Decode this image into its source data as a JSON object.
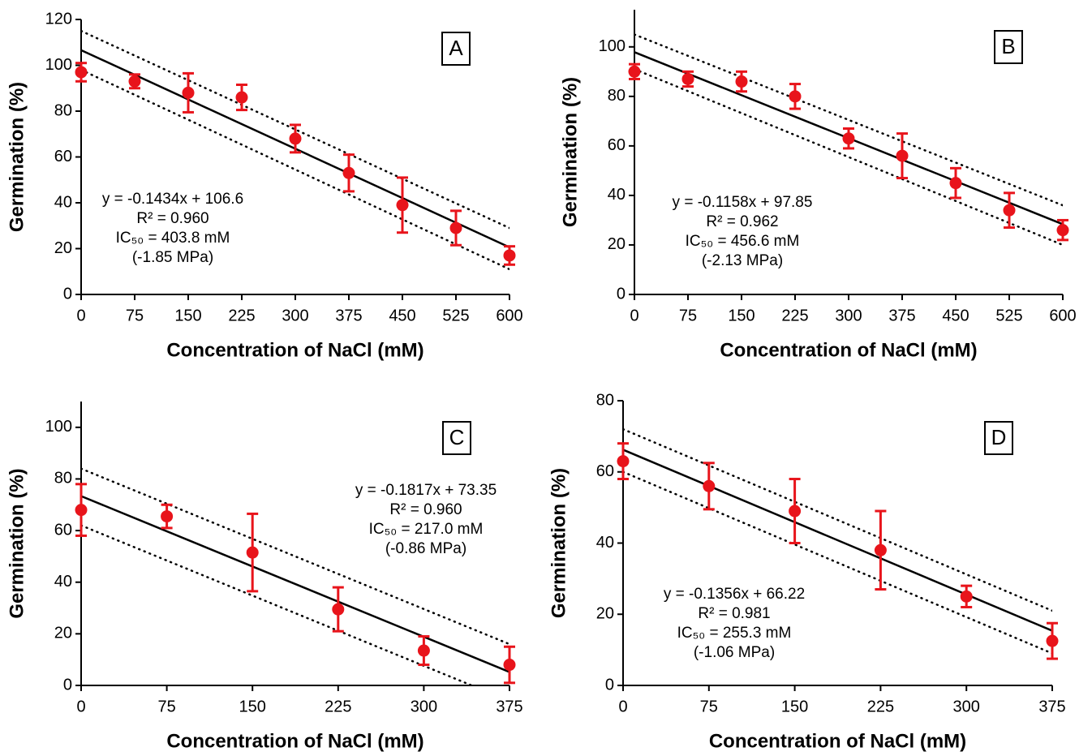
{
  "chart_data": [
    {
      "type": "scatter",
      "label": "A",
      "x": [
        0,
        75,
        150,
        225,
        300,
        375,
        450,
        525,
        600
      ],
      "values": [
        97,
        93,
        88,
        86,
        68,
        53,
        39,
        29,
        17
      ],
      "errors": [
        4,
        3,
        8.5,
        5.5,
        6,
        8,
        12,
        7.5,
        4
      ],
      "color": "#e8141b",
      "fit": {
        "slope": -0.1434,
        "intercept": 106.6
      },
      "band_upper": {
        "x": [
          0,
          600
        ],
        "values": [
          115,
          29
        ]
      },
      "band_lower": {
        "x": [
          0,
          600
        ],
        "values": [
          98,
          11
        ]
      },
      "annotation": [
        "y = -0.1434x + 106.6",
        "R² = 0.960",
        "IC₅₀ = 403.8 mM",
        "(-1.85 MPa)"
      ],
      "x_label": "Concentration of NaCl (mM)",
      "y_label": "Germination (%)",
      "xlim": [
        0,
        600
      ],
      "xticks": [
        0,
        75,
        150,
        225,
        300,
        375,
        450,
        525,
        600
      ],
      "ylim": [
        0,
        120
      ],
      "yticks": [
        0,
        20,
        40,
        60,
        80,
        100,
        120
      ]
    },
    {
      "type": "scatter",
      "label": "B",
      "x": [
        0,
        75,
        150,
        225,
        300,
        375,
        450,
        525,
        600
      ],
      "values": [
        90,
        87,
        86,
        80,
        63,
        56,
        45,
        34,
        26
      ],
      "errors": [
        3,
        3,
        4,
        5,
        4,
        9,
        6,
        7,
        4
      ],
      "color": "#e8141b",
      "fit": {
        "slope": -0.1158,
        "intercept": 97.85
      },
      "band_upper": {
        "x": [
          0,
          600
        ],
        "values": [
          105,
          36
        ]
      },
      "band_lower": {
        "x": [
          0,
          600
        ],
        "values": [
          91,
          20
        ]
      },
      "annotation": [
        "y = -0.1158x + 97.85",
        "R² = 0.962",
        "IC₅₀ = 456.6 mM",
        "(-2.13 MPa)"
      ],
      "x_label": "Concentration of NaCl (mM)",
      "y_label": "Germination (%)",
      "xlim": [
        0,
        600
      ],
      "xticks": [
        0,
        75,
        150,
        225,
        300,
        375,
        450,
        525,
        600
      ],
      "ylim": [
        0,
        115
      ],
      "yticks": [
        0,
        20,
        40,
        60,
        80,
        100
      ]
    },
    {
      "type": "scatter",
      "label": "C",
      "x": [
        0,
        75,
        150,
        225,
        300,
        375
      ],
      "values": [
        68,
        65.5,
        51.5,
        29.5,
        13.5,
        8
      ],
      "errors": [
        10,
        4.5,
        15,
        8.5,
        5.5,
        7
      ],
      "color": "#e8141b",
      "fit": {
        "slope": -0.1817,
        "intercept": 73.35
      },
      "band_upper": {
        "x": [
          0,
          375
        ],
        "values": [
          84,
          16
        ]
      },
      "band_lower": {
        "x": [
          0,
          375
        ],
        "values": [
          62,
          -6
        ]
      },
      "annotation": [
        "y = -0.1817x + 73.35",
        "R² = 0.960",
        "IC₅₀ = 217.0 mM",
        "(-0.86 MPa)"
      ],
      "x_label": "Concentration of NaCl (mM)",
      "y_label": "Germination (%)",
      "xlim": [
        0,
        375
      ],
      "xticks": [
        0,
        75,
        150,
        225,
        300,
        375
      ],
      "ylim": [
        0,
        110
      ],
      "yticks": [
        0,
        20,
        40,
        60,
        80,
        100
      ]
    },
    {
      "type": "scatter",
      "label": "D",
      "x": [
        0,
        75,
        150,
        225,
        300,
        375
      ],
      "values": [
        63,
        56,
        49,
        38,
        25,
        12.5
      ],
      "errors": [
        5,
        6.5,
        9,
        11,
        3,
        5
      ],
      "color": "#e8141b",
      "fit": {
        "slope": -0.1356,
        "intercept": 66.22
      },
      "band_upper": {
        "x": [
          0,
          375
        ],
        "values": [
          72,
          21
        ]
      },
      "band_lower": {
        "x": [
          0,
          375
        ],
        "values": [
          60,
          9
        ]
      },
      "annotation": [
        "y = -0.1356x + 66.22",
        "R² = 0.981",
        "IC₅₀ = 255.3 mM",
        "(-1.06 MPa)"
      ],
      "x_label": "Concentration of NaCl (mM)",
      "y_label": "Germination (%)",
      "xlim": [
        0,
        375
      ],
      "xticks": [
        0,
        75,
        150,
        225,
        300,
        375
      ],
      "ylim": [
        0,
        80
      ],
      "yticks": [
        0,
        20,
        40,
        60,
        80
      ]
    }
  ]
}
